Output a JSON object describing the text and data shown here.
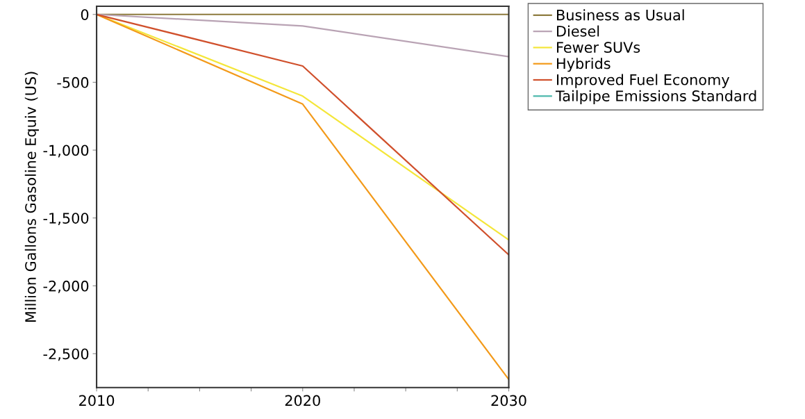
{
  "chart_data": {
    "type": "line",
    "ylabel": "Million Gallons Gasoline Equiv (US)",
    "x": [
      2010,
      2020,
      2030
    ],
    "xlim": [
      2010,
      2030
    ],
    "xticks": [
      2010,
      {
        "value": 2012.5,
        "label": null
      },
      {
        "value": 2015,
        "label": null
      },
      {
        "value": 2017.5,
        "label": null
      },
      2020,
      {
        "value": 2022.5,
        "label": null
      },
      {
        "value": 2025,
        "label": null
      },
      {
        "value": 2027.5,
        "label": null
      },
      2030
    ],
    "ylim": [
      -2750,
      60
    ],
    "yticks": [
      {
        "value": 0,
        "label": "0"
      },
      {
        "value": -500,
        "label": "-500"
      },
      {
        "value": -1000,
        "label": "-1,000"
      },
      {
        "value": -1500,
        "label": "-1,500"
      },
      {
        "value": -2000,
        "label": "-2,000"
      },
      {
        "value": -2500,
        "label": "-2,500"
      }
    ],
    "grid": false,
    "legend": "top right",
    "marker": "none",
    "line_style": "solid",
    "series": [
      {
        "name": "Business as Usual",
        "color": "#8c7a3c",
        "values": [
          0,
          0,
          0
        ]
      },
      {
        "name": "Diesel",
        "color": "#b9a3b4",
        "values": [
          0,
          -85,
          -311
        ]
      },
      {
        "name": "Fewer SUVs",
        "color": "#f4e63a",
        "values": [
          0,
          -602,
          -1662
        ]
      },
      {
        "name": "Hybrids",
        "color": "#f39a1a",
        "values": [
          0,
          -661,
          -2690
        ]
      },
      {
        "name": "Improved Fuel Economy",
        "color": "#d0502c",
        "values": [
          0,
          -380,
          -1772
        ]
      },
      {
        "name": "Tailpipe Emissions Standard",
        "color": "#4db8ac",
        "values": [
          null,
          null,
          null
        ]
      }
    ]
  }
}
